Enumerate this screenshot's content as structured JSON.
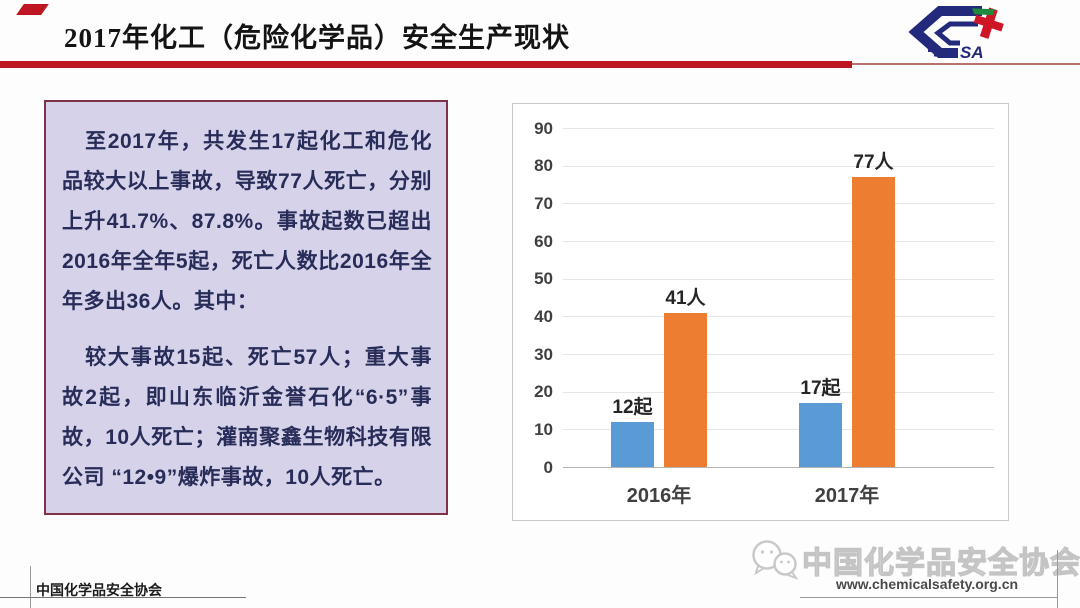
{
  "slide": {
    "title": "2017年化工（危险化学品）安全生产现状",
    "logo": {
      "text": "SA"
    },
    "info_box": {
      "paragraph1": "至2017年，共发生17起化工和危化品较大以上事故，导致77人死亡，分别上升41.7%、87.8%。事故起数已超出2016年全年5起，死亡人数比2016年全年多出36人。其中：",
      "paragraph2": "较大事故15起、死亡57人；重大事故2起，即山东临沂金誉石化“6·5”事故，10人死亡；灌南聚鑫生物科技有限公司 “12•9”爆炸事故，10人死亡。"
    },
    "footer": {
      "left_text": "中国化学品安全协会",
      "right_org": "中国化学品安全协会",
      "right_url": "www.chemicalsafety.org.cn"
    },
    "colors": {
      "accent_red": "#bf1722",
      "bar_blue": "#5b9bd5",
      "bar_orange": "#ed7d31",
      "box_bg": "#d6d2ea",
      "box_border": "#7e3148",
      "text_navy": "#272c58"
    }
  },
  "chart_data": {
    "type": "bar",
    "categories": [
      "2016年",
      "2017年"
    ],
    "series": [
      {
        "name": "起",
        "values": [
          12,
          17
        ],
        "labels": [
          "12起",
          "17起"
        ],
        "color": "#5b9bd5"
      },
      {
        "name": "人",
        "values": [
          41,
          77
        ],
        "labels": [
          "41人",
          "77人"
        ],
        "color": "#ed7d31"
      }
    ],
    "title": "",
    "xlabel": "",
    "ylabel": "",
    "ylim": [
      0,
      90
    ],
    "ytick_step": 10,
    "grid": true,
    "legend": "none"
  }
}
